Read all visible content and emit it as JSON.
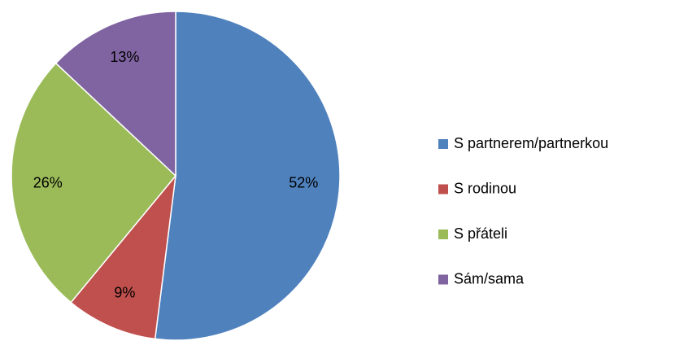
{
  "chart_data": {
    "type": "pie",
    "categories": [
      "S partnerem/partnerkou",
      "S rodinou",
      "S přáteli",
      "Sám/sama"
    ],
    "values": [
      52,
      9,
      26,
      13
    ],
    "value_labels": [
      "52%",
      "9%",
      "26%",
      "13%"
    ],
    "colors": [
      "#4f81bd",
      "#c0504d",
      "#9bbb59",
      "#8064a2"
    ],
    "legend": "right"
  }
}
